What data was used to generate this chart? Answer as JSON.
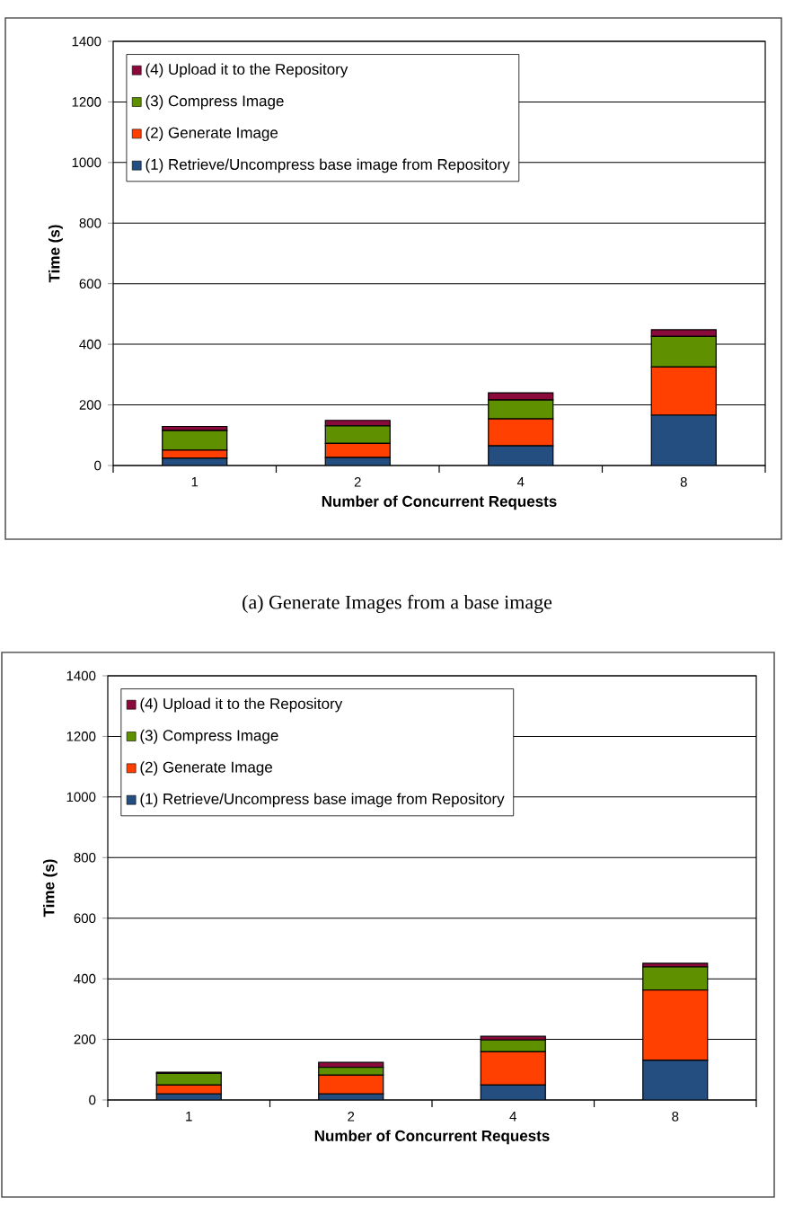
{
  "chart_data": [
    {
      "type": "bar",
      "stacked": true,
      "categories": [
        "1",
        "2",
        "4",
        "8"
      ],
      "xlabel": "Number of Concurrent Requests",
      "ylabel": "Time (s)",
      "ylim": [
        0,
        1400
      ],
      "yticks": [
        0,
        200,
        400,
        600,
        800,
        1000,
        1200,
        1400
      ],
      "grid": "y",
      "legend": "top left",
      "series": [
        {
          "name": "(1) Retrieve/Uncompress base image from Repository",
          "color": "#254e80",
          "values": [
            24,
            26,
            65,
            166
          ]
        },
        {
          "name": "(2) Generate Image",
          "color": "#ff4000",
          "values": [
            27,
            47,
            89,
            159
          ]
        },
        {
          "name": "(3) Compress Image",
          "color": "#5f9000",
          "values": [
            64,
            58,
            62,
            101
          ]
        },
        {
          "name": "(4) Upload it to the Repository",
          "color": "#8b0a3c",
          "values": [
            14,
            18,
            24,
            22
          ]
        }
      ],
      "annotations": [
        "(a) Generate Images from a base image"
      ]
    },
    {
      "type": "bar",
      "stacked": true,
      "categories": [
        "1",
        "2",
        "4",
        "8"
      ],
      "xlabel": "Number of Concurrent Requests",
      "ylabel": "Time (s)",
      "ylim": [
        0,
        1400
      ],
      "yticks": [
        0,
        200,
        400,
        600,
        800,
        1000,
        1200,
        1400
      ],
      "grid": "y",
      "legend": "top left",
      "series": [
        {
          "name": "(1) Retrieve/Uncompress base image from Repository",
          "color": "#254e80",
          "values": [
            20,
            20,
            49,
            131
          ]
        },
        {
          "name": "(2) Generate Image",
          "color": "#ff4000",
          "values": [
            29,
            62,
            110,
            232
          ]
        },
        {
          "name": "(3) Compress Image",
          "color": "#5f9000",
          "values": [
            39,
            26,
            39,
            76
          ]
        },
        {
          "name": "(4) Upload it to the Repository",
          "color": "#8b0a3c",
          "values": [
            4,
            16,
            12,
            12
          ]
        }
      ]
    }
  ]
}
